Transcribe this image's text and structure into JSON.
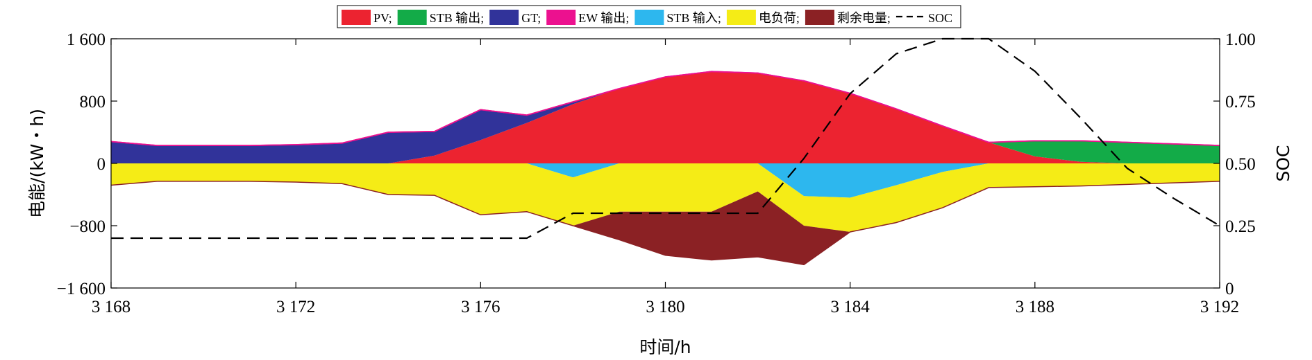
{
  "chart_data": {
    "type": "area",
    "xlabel": "时间/h",
    "ylabel": "电能/(kW・h)",
    "y2label": "SOC",
    "xlim": [
      3168,
      3192
    ],
    "ylim": [
      -1600,
      1600
    ],
    "y2lim": [
      0,
      1.0
    ],
    "xticks": [
      3168,
      3172,
      3176,
      3180,
      3184,
      3188,
      3192
    ],
    "xtick_labels": [
      "3 168",
      "3 172",
      "3 176",
      "3 180",
      "3 184",
      "3 188",
      "3 192"
    ],
    "yticks": [
      -1600,
      -800,
      0,
      800,
      1600
    ],
    "ytick_labels": [
      "−1 600",
      "−800",
      "0",
      "800",
      "1 600"
    ],
    "y2ticks": [
      0,
      0.25,
      0.5,
      0.75,
      1.0
    ],
    "y2tick_labels": [
      "0",
      "0.25",
      "0.50",
      "0.75",
      "1.00"
    ],
    "grid": false,
    "legend_position": "top-center",
    "x": [
      3168,
      3169,
      3170,
      3171,
      3172,
      3173,
      3174,
      3175,
      3176,
      3177,
      3178,
      3179,
      3180,
      3181,
      3182,
      3183,
      3184,
      3185,
      3186,
      3187,
      3188,
      3189,
      3190,
      3191,
      3192
    ],
    "series": [
      {
        "name": "PV",
        "legend": "PV;",
        "color": "#ec2330",
        "stack": "positive",
        "values": [
          0,
          0,
          0,
          0,
          0,
          0,
          0,
          100,
          300,
          520,
          760,
          960,
          1110,
          1180,
          1160,
          1060,
          900,
          700,
          480,
          270,
          90,
          20,
          0,
          0,
          0
        ]
      },
      {
        "name": "STB 输出",
        "legend": "STB 输出;",
        "color": "#13ab48",
        "stack": "positive",
        "values": [
          0,
          0,
          0,
          0,
          0,
          0,
          0,
          0,
          0,
          0,
          0,
          0,
          0,
          0,
          0,
          0,
          0,
          0,
          0,
          0,
          200,
          270,
          270,
          250,
          230
        ]
      },
      {
        "name": "GT",
        "legend": "GT;",
        "color": "#31339a",
        "stack": "positive",
        "values": [
          280,
          230,
          230,
          230,
          240,
          260,
          400,
          310,
          390,
          100,
          30,
          0,
          0,
          0,
          0,
          0,
          0,
          0,
          0,
          0,
          0,
          0,
          0,
          0,
          0
        ]
      },
      {
        "name": "EW 输出",
        "legend": "EW 输出;",
        "color": "#ec118f",
        "stack": "positive",
        "line_only": true,
        "values": [
          0,
          0,
          0,
          0,
          0,
          0,
          0,
          0,
          0,
          0,
          0,
          0,
          0,
          0,
          0,
          0,
          0,
          0,
          0,
          0,
          0,
          0,
          0,
          0,
          0
        ]
      },
      {
        "name": "STB 输入",
        "legend": "STB 输入;",
        "color": "#2db7ee",
        "stack": "negative",
        "values": [
          0,
          0,
          0,
          0,
          0,
          0,
          0,
          0,
          0,
          0,
          -180,
          0,
          0,
          0,
          0,
          -420,
          -440,
          -280,
          -110,
          0,
          0,
          0,
          0,
          0,
          0
        ]
      },
      {
        "name": "电负荷",
        "legend": "电负荷;",
        "color": "#f5ec16",
        "stack": "negative",
        "values": [
          -280,
          -230,
          -230,
          -230,
          -240,
          -260,
          -400,
          -410,
          -660,
          -620,
          -620,
          -620,
          -620,
          -620,
          -360,
          -380,
          -440,
          -480,
          -460,
          -310,
          -300,
          -290,
          -270,
          -250,
          -230
        ]
      },
      {
        "name": "剩余电量",
        "legend": "剩余电量;",
        "color": "#8b2124",
        "stack": "negative",
        "values": [
          0,
          0,
          0,
          0,
          0,
          0,
          0,
          0,
          0,
          0,
          0,
          -360,
          -560,
          -620,
          -840,
          -500,
          0,
          0,
          0,
          0,
          0,
          0,
          0,
          0,
          0
        ]
      },
      {
        "name": "SOC",
        "legend": "SOC",
        "color": "#000000",
        "axis": "right",
        "style": "dashed",
        "values": [
          0.2,
          0.2,
          0.2,
          0.2,
          0.2,
          0.2,
          0.2,
          0.2,
          0.2,
          0.2,
          0.3,
          0.3,
          0.3,
          0.3,
          0.3,
          0.52,
          0.78,
          0.94,
          1.0,
          1.0,
          0.87,
          0.68,
          0.48,
          0.36,
          0.25
        ]
      }
    ]
  }
}
